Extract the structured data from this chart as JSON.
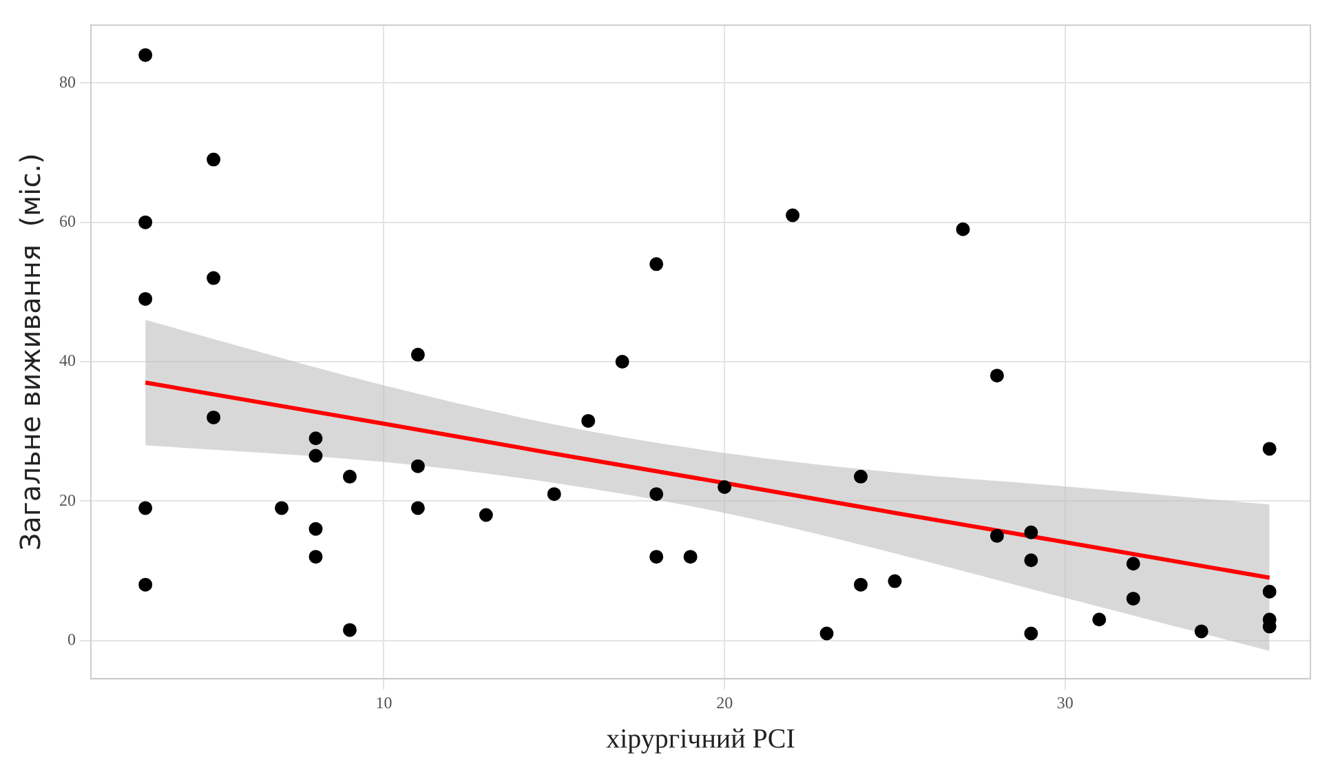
{
  "chart_data": {
    "type": "scatter",
    "xlabel": "хірургічний PCI",
    "ylabel": "Загальне виживання  (міс.)",
    "xlim": [
      1.4,
      37.2
    ],
    "ylim": [
      -5.5,
      88.3
    ],
    "xticks": [
      10,
      20,
      30
    ],
    "yticks": [
      0,
      20,
      40,
      60,
      80
    ],
    "grid": true,
    "legend": false,
    "series": [
      {
        "color": "#000000",
        "marker": "circle",
        "x": [
          3,
          3,
          3,
          3,
          3,
          5,
          5,
          5,
          7,
          8,
          8,
          8,
          8,
          9,
          9,
          11,
          11,
          11,
          13,
          15,
          16,
          17,
          18,
          18,
          18,
          19,
          20,
          22,
          23,
          24,
          24,
          25,
          27,
          28,
          28,
          29,
          29,
          29,
          31,
          32,
          32,
          34,
          36,
          36,
          36,
          36
        ],
        "values": [
          84,
          60,
          49,
          19,
          8,
          69,
          52,
          32,
          19,
          29,
          26.5,
          16,
          12,
          23.5,
          1.5,
          41,
          25,
          19,
          18,
          21,
          31.5,
          40,
          54,
          21,
          12,
          12,
          22,
          61,
          1,
          23.5,
          8,
          8.5,
          59,
          38,
          15,
          15.5,
          11.5,
          1,
          3,
          11,
          6,
          1.3,
          27.5,
          7,
          3,
          2
        ]
      },
      {
        "type": "line",
        "color": "#ff0000",
        "marker": "none",
        "line_style": "solid",
        "x": [
          3,
          10,
          15,
          20,
          25,
          30,
          36
        ],
        "values": [
          37,
          31.1,
          26.8,
          22.6,
          18.3,
          14.1,
          9
        ],
        "lower": [
          28,
          25.6,
          22.6,
          18.3,
          12.5,
          6.1,
          -1.5
        ],
        "upper": [
          46,
          36.6,
          31,
          26.9,
          24.1,
          22.1,
          19.5
        ]
      }
    ]
  }
}
